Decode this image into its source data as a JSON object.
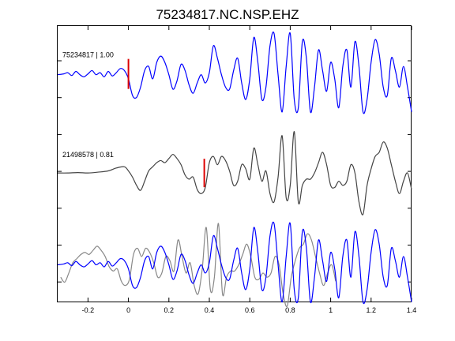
{
  "chart_data": {
    "type": "line",
    "title": "75234817.NC.NSP.EHZ",
    "xlim": [
      -0.35,
      1.4
    ],
    "x_ticks": [
      -0.2,
      0,
      0.2,
      0.4,
      0.6,
      0.8,
      1,
      1.2,
      1.4
    ],
    "x_tick_labels": [
      "-0.2",
      "0",
      "0.2",
      "0.4",
      "0.6",
      "0.8",
      "1",
      "1.2",
      "1.4"
    ],
    "xlabel": "",
    "ylabel": "",
    "grid": false,
    "colors": {
      "primary": "#0000ff",
      "secondary": "#444444",
      "overlay": "#888888",
      "pick": "#dd0000"
    },
    "traces": [
      {
        "label": "75234817 | 1.00",
        "color": "#0000ff",
        "pick_time": 0.0,
        "x": [
          -0.35,
          -0.32,
          -0.3,
          -0.28,
          -0.26,
          -0.24,
          -0.22,
          -0.2,
          -0.18,
          -0.16,
          -0.14,
          -0.12,
          -0.1,
          -0.08,
          -0.06,
          -0.04,
          -0.02,
          0.0,
          0.02,
          0.04,
          0.06,
          0.08,
          0.1,
          0.12,
          0.14,
          0.16,
          0.18,
          0.2,
          0.22,
          0.24,
          0.26,
          0.28,
          0.3,
          0.32,
          0.34,
          0.36,
          0.38,
          0.4,
          0.42,
          0.44,
          0.46,
          0.48,
          0.5,
          0.52,
          0.54,
          0.56,
          0.58,
          0.6,
          0.62,
          0.64,
          0.66,
          0.68,
          0.7,
          0.72,
          0.74,
          0.76,
          0.78,
          0.8,
          0.82,
          0.84,
          0.86,
          0.88,
          0.9,
          0.92,
          0.94,
          0.96,
          0.98,
          1.0,
          1.02,
          1.04,
          1.06,
          1.08,
          1.1,
          1.12,
          1.14,
          1.16,
          1.18,
          1.2,
          1.22,
          1.24,
          1.26,
          1.28,
          1.3,
          1.32,
          1.34,
          1.36,
          1.38,
          1.4
        ],
        "y": [
          0.0,
          0.02,
          0.05,
          -0.02,
          0.08,
          0.0,
          -0.05,
          0.02,
          0.1,
          0.0,
          0.05,
          -0.05,
          0.08,
          -0.03,
          0.05,
          0.15,
          0.1,
          -0.1,
          -0.5,
          -0.55,
          -0.3,
          0.1,
          0.2,
          -0.1,
          0.3,
          0.45,
          0.3,
          0.0,
          -0.35,
          -0.15,
          0.25,
          0.1,
          -0.25,
          -0.45,
          -0.2,
          0.0,
          -0.2,
          0.05,
          0.7,
          0.4,
          0.0,
          -0.3,
          -0.35,
          0.1,
          0.4,
          -0.2,
          -0.6,
          -0.1,
          0.9,
          0.3,
          -0.6,
          -0.3,
          0.7,
          1.0,
          0.0,
          -0.9,
          0.2,
          1.0,
          -0.6,
          -0.8,
          0.8,
          0.4,
          -0.9,
          -0.3,
          0.6,
          0.1,
          -0.4,
          0.3,
          -0.1,
          -0.8,
          0.2,
          0.6,
          -0.3,
          0.8,
          0.2,
          -0.9,
          -0.6,
          0.3,
          0.85,
          0.5,
          -0.3,
          -0.5,
          0.4,
          0.1,
          -0.3,
          0.2,
          -0.3,
          -0.9
        ]
      },
      {
        "label": "21498578 | 0.81",
        "color": "#444444",
        "pick_time": 0.375,
        "x": [
          -0.35,
          -0.3,
          -0.25,
          -0.2,
          -0.15,
          -0.1,
          -0.06,
          -0.02,
          0.0,
          0.02,
          0.04,
          0.06,
          0.08,
          0.1,
          0.12,
          0.14,
          0.16,
          0.18,
          0.2,
          0.22,
          0.24,
          0.26,
          0.28,
          0.3,
          0.32,
          0.34,
          0.36,
          0.38,
          0.4,
          0.42,
          0.44,
          0.46,
          0.48,
          0.5,
          0.52,
          0.54,
          0.56,
          0.58,
          0.6,
          0.62,
          0.64,
          0.66,
          0.68,
          0.7,
          0.72,
          0.74,
          0.76,
          0.78,
          0.8,
          0.82,
          0.84,
          0.86,
          0.88,
          0.9,
          0.92,
          0.94,
          0.96,
          0.98,
          1.0,
          1.02,
          1.04,
          1.06,
          1.08,
          1.1,
          1.12,
          1.14,
          1.16,
          1.18,
          1.2,
          1.22,
          1.24,
          1.26,
          1.28,
          1.3,
          1.32,
          1.34,
          1.36,
          1.38,
          1.4
        ],
        "y": [
          0.0,
          0.0,
          0.01,
          0.0,
          0.02,
          0.05,
          0.12,
          0.15,
          0.05,
          -0.1,
          -0.3,
          -0.42,
          -0.2,
          0.05,
          0.15,
          0.25,
          0.3,
          0.25,
          0.35,
          0.45,
          0.35,
          0.2,
          -0.05,
          -0.15,
          -0.1,
          -0.4,
          -0.5,
          -0.35,
          0.25,
          0.4,
          0.2,
          0.4,
          0.3,
          0.05,
          -0.3,
          -0.2,
          0.2,
          0.1,
          -0.15,
          0.6,
          0.2,
          -0.2,
          0.05,
          -0.5,
          -0.7,
          -0.1,
          0.9,
          -0.6,
          -0.3,
          1.0,
          -0.7,
          -0.3,
          -0.15,
          -0.15,
          0.0,
          0.25,
          0.5,
          0.2,
          -0.3,
          -0.35,
          -0.2,
          -0.3,
          -0.2,
          0.2,
          0.0,
          -0.7,
          -1.0,
          -0.3,
          0.1,
          0.4,
          0.5,
          0.75,
          0.6,
          0.2,
          -0.2,
          -0.5,
          -0.2,
          0.0,
          -0.4
        ]
      }
    ],
    "overlay": {
      "primary_shift": 0.0,
      "secondary_shift": -0.375
    }
  }
}
